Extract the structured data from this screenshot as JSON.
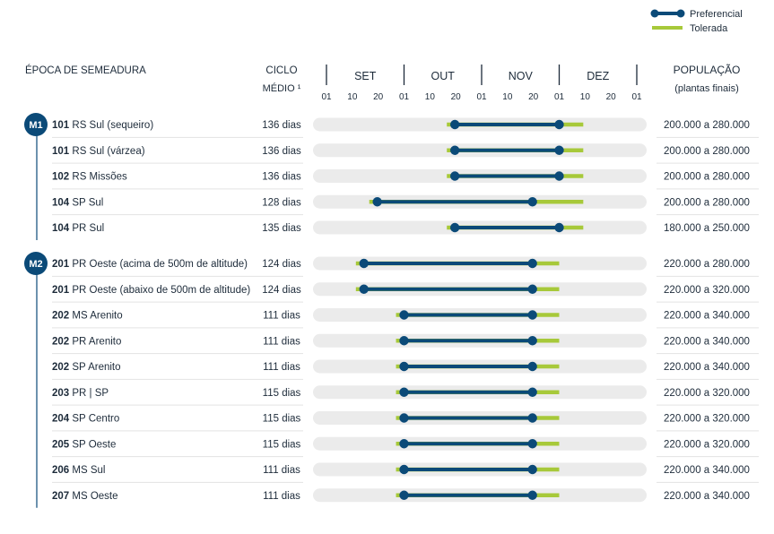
{
  "chart_data": {
    "type": "gantt",
    "legend": {
      "preferred": "Preferencial",
      "tolerated": "Tolerada",
      "placement": "top-right"
    },
    "headers": {
      "epoch": "ÉPOCA DE SEMEADURA",
      "cycle_line1": "CICLO",
      "cycle_line2": "MÉDIO ¹",
      "population_line1": "POPULAÇÃO",
      "population_line2": "(plantas finais)"
    },
    "months": [
      "SET",
      "OUT",
      "NOV",
      "DEZ"
    ],
    "ticks": [
      "01",
      "10",
      "20",
      "01",
      "10",
      "20",
      "01",
      "10",
      "20",
      "01",
      "10",
      "20",
      "01"
    ],
    "colors": {
      "preferred": "#0b4a78",
      "tolerated": "#a7c93a",
      "track": "#ebebeb",
      "badge": "#0b4a78"
    },
    "groups": [
      {
        "badge": "M1",
        "rows": [
          {
            "code": "101",
            "name": "RS Sul (sequeiro)",
            "cycle": "136 dias",
            "tolerated": [
              "OUT-17",
              "DEZ-10"
            ],
            "preferred": [
              "OUT-20",
              "DEZ-01"
            ],
            "population": "200.000 a 280.000"
          },
          {
            "code": "101",
            "name": " RS Sul (várzea)",
            "cycle": "136 dias",
            "tolerated": [
              "OUT-17",
              "DEZ-10"
            ],
            "preferred": [
              "OUT-20",
              "DEZ-01"
            ],
            "population": "200.000 a 280.000"
          },
          {
            "code": "102",
            "name": "RS Missões",
            "cycle": "136 dias",
            "tolerated": [
              "OUT-17",
              "DEZ-10"
            ],
            "preferred": [
              "OUT-20",
              "DEZ-01"
            ],
            "population": "200.000 a 280.000"
          },
          {
            "code": "104",
            "name": "SP Sul",
            "cycle": "128 dias",
            "tolerated": [
              "SET-17",
              "DEZ-10"
            ],
            "preferred": [
              "SET-20",
              "NOV-20"
            ],
            "population": "200.000 a 280.000"
          },
          {
            "code": "104",
            "name": "PR Sul",
            "cycle": "135 dias",
            "tolerated": [
              "OUT-17",
              "DEZ-10"
            ],
            "preferred": [
              "OUT-20",
              "DEZ-01"
            ],
            "population": "180.000 a 250.000"
          }
        ]
      },
      {
        "badge": "M2",
        "rows": [
          {
            "code": "201",
            "name": "PR Oeste (acima de 500m de altitude)",
            "cycle": "124 dias",
            "tolerated": [
              "SET-12",
              "DEZ-01"
            ],
            "preferred": [
              "SET-15",
              "NOV-20"
            ],
            "population": "220.000 a 280.000"
          },
          {
            "code": "201",
            "name": "PR Oeste (abaixo de 500m de altitude)",
            "cycle": "124 dias",
            "tolerated": [
              "SET-12",
              "DEZ-01"
            ],
            "preferred": [
              "SET-15",
              "NOV-20"
            ],
            "population": "220.000 a 320.000"
          },
          {
            "code": "202",
            "name": "MS Arenito",
            "cycle": "111 dias",
            "tolerated": [
              "SET-27",
              "DEZ-01"
            ],
            "preferred": [
              "OUT-01",
              "NOV-20"
            ],
            "population": "220.000 a 340.000"
          },
          {
            "code": "202",
            "name": "PR Arenito",
            "cycle": "111 dias",
            "tolerated": [
              "SET-27",
              "DEZ-01"
            ],
            "preferred": [
              "OUT-01",
              "NOV-20"
            ],
            "population": "220.000 a 340.000"
          },
          {
            "code": "202",
            "name": "SP Arenito",
            "cycle": "111 dias",
            "tolerated": [
              "SET-27",
              "DEZ-01"
            ],
            "preferred": [
              "OUT-01",
              "NOV-20"
            ],
            "population": "220.000 a 340.000"
          },
          {
            "code": "203",
            "name": "PR | SP",
            "cycle": "115 dias",
            "tolerated": [
              "SET-27",
              "DEZ-01"
            ],
            "preferred": [
              "OUT-01",
              "NOV-20"
            ],
            "population": "220.000 a 320.000"
          },
          {
            "code": "204",
            "name": "SP Centro",
            "cycle": "115 dias",
            "tolerated": [
              "SET-27",
              "DEZ-01"
            ],
            "preferred": [
              "OUT-01",
              "NOV-20"
            ],
            "population": "220.000 a 320.000"
          },
          {
            "code": "205",
            "name": "SP Oeste",
            "cycle": "115 dias",
            "tolerated": [
              "SET-27",
              "DEZ-01"
            ],
            "preferred": [
              "OUT-01",
              "NOV-20"
            ],
            "population": "220.000 a 320.000"
          },
          {
            "code": "206",
            "name": "MS Sul",
            "cycle": "111 dias",
            "tolerated": [
              "SET-27",
              "DEZ-01"
            ],
            "preferred": [
              "OUT-01",
              "NOV-20"
            ],
            "population": "220.000 a 340.000"
          },
          {
            "code": "207",
            "name": "MS Oeste",
            "cycle": "111 dias",
            "tolerated": [
              "SET-27",
              "DEZ-01"
            ],
            "preferred": [
              "OUT-01",
              "NOV-20"
            ],
            "population": "220.000 a 340.000"
          }
        ]
      }
    ]
  }
}
